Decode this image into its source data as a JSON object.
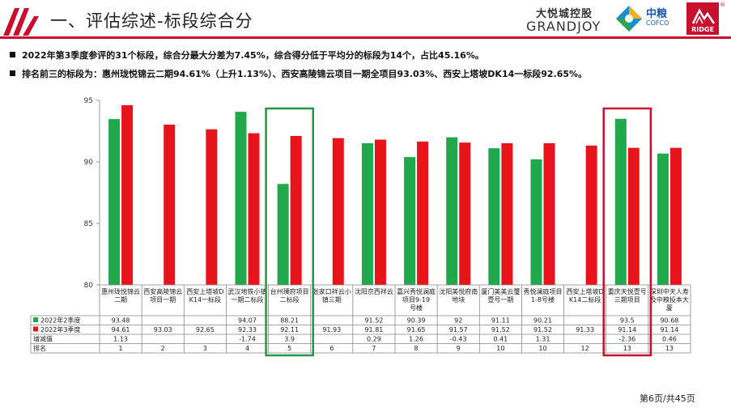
{
  "header": {
    "title": "一、评估综述-标段综合分",
    "brand_cn": "大悦城控股",
    "brand_en": "GRANDJOY",
    "cofco_cn": "中粮",
    "cofco_en": "COFCO",
    "ridge": "RIDGE",
    "accent_color": "#c8102e"
  },
  "bullets": [
    "2022年第3季度参评的31个标段，综合分最大分差为7.45%，综合得分低于平均分的标段为14个，占比45.16%。",
    "排名前三的标段为：惠州珑悦锦云二期94.61%（上升1.13%）、西安高陵锦云项目一期全项目93.03%、西安上塔坡DK14一标段92.65%。"
  ],
  "chart_data": {
    "type": "bar",
    "categories": [
      "惠州珑悦锦云二期",
      "西安高陵锦云项目一期",
      "西安上塔坡DK14一标段",
      "武汉地铁小镇一期二标段",
      "台州璞府项目二标段",
      "张家口祥云小镇三期",
      "沈阳京西祥云",
      "嘉兴秀悦澜庭项目9-19号楼",
      "沈阳美悦府南地块",
      "厦门美美云璽壹号一期",
      "秀悦澜庭项目1-8号楼",
      "西安上塔坡DK14二标段",
      "重庆天悦壹号三期项目",
      "深圳中天人寿及中粮投本大厦"
    ],
    "series": [
      {
        "name": "2022年2季度",
        "color": "#21a84d",
        "values": [
          93.48,
          null,
          null,
          94.07,
          88.21,
          null,
          91.52,
          90.39,
          92,
          91.11,
          90.21,
          null,
          93.5,
          90.68
        ],
        "labels": [
          "93.48",
          "",
          "",
          "94.07",
          "88.21",
          "",
          "91.52",
          "90.39",
          "92",
          "91.11",
          "90.21",
          "",
          "93.5",
          "90.68"
        ]
      },
      {
        "name": "2022年3季度",
        "color": "#e8141c",
        "values": [
          94.61,
          93.03,
          92.65,
          92.33,
          92.11,
          91.93,
          91.81,
          91.65,
          91.57,
          91.52,
          91.52,
          91.33,
          91.14,
          91.14
        ],
        "labels": [
          "94.61",
          "93.03",
          "92.65",
          "92.33",
          "92.11",
          "91.93",
          "91.81",
          "91.65",
          "91.57",
          "91.52",
          "91.52",
          "91.33",
          "91.14",
          "91.14"
        ]
      }
    ],
    "extra_rows": [
      {
        "name": "增减值",
        "labels": [
          "1.13",
          "",
          "",
          "-1.74",
          "3.9",
          "",
          "0.29",
          "1.26",
          "-0.43",
          "0.41",
          "1.31",
          "",
          "-2.36",
          "0.46"
        ]
      },
      {
        "name": "排名",
        "labels": [
          "1",
          "2",
          "3",
          "4",
          "5",
          "6",
          "7",
          "8",
          "9",
          "10",
          "10",
          "12",
          "13",
          "13"
        ]
      }
    ],
    "ylim": [
      80,
      95
    ],
    "yticks": [
      80,
      85,
      90,
      95
    ],
    "highlight_indices": [
      4,
      12
    ],
    "highlight_colors": [
      "#1c9a44",
      "#c8102e"
    ],
    "xlabel": "",
    "ylabel": ""
  },
  "footer": {
    "page": "第6页/共45页"
  }
}
